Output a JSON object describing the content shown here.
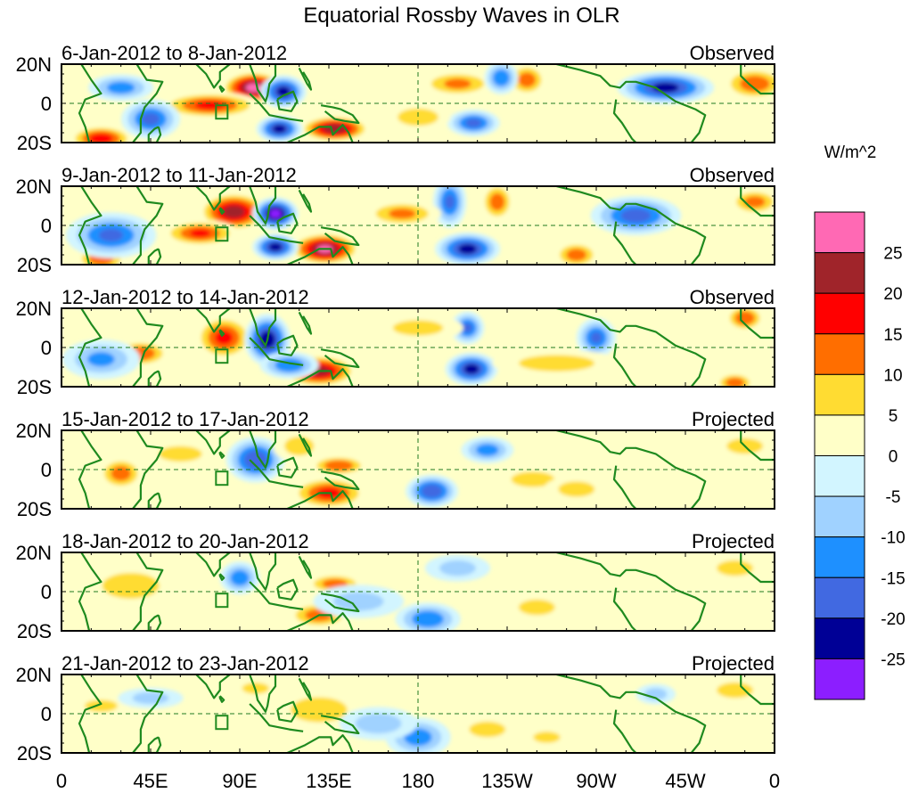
{
  "chart_data": {
    "type": "heatmap",
    "title": "Equatorial Rossby Waves in OLR",
    "units_label": "W/m^2",
    "x_axis": {
      "range_deg_east": [
        0,
        360
      ],
      "tick_labels": [
        "0",
        "45E",
        "90E",
        "135E",
        "180",
        "135W",
        "90W",
        "45W",
        "0"
      ],
      "tick_values_deg_east": [
        0,
        45,
        90,
        135,
        180,
        225,
        270,
        315,
        360
      ]
    },
    "y_axis": {
      "range_deg": [
        -20,
        20
      ],
      "tick_labels": [
        "20N",
        "0",
        "20S"
      ],
      "tick_values": [
        20,
        0,
        -20
      ]
    },
    "reference_lines": {
      "equator": 0,
      "dateline_deg_east": 180
    },
    "colorbar": {
      "levels": [
        -25,
        -20,
        -15,
        -10,
        -5,
        0,
        5,
        10,
        15,
        20,
        25
      ],
      "tick_labels": [
        "25",
        "20",
        "15",
        "10",
        "5",
        "0",
        "-5",
        "-10",
        "-15",
        "-20",
        "-25"
      ],
      "colors_high_to_low": [
        "#ff69b4",
        "#a0242a",
        "#ff0000",
        "#ff6e00",
        "#ffdc32",
        "#ffffc8",
        "#d2f5ff",
        "#a0d2ff",
        "#1e90ff",
        "#4169e1",
        "#000096",
        "#8c1eff"
      ]
    },
    "panels": [
      {
        "period": "6-Jan-2012 to 8-Jan-2012",
        "status": "Observed",
        "anomalies": [
          {
            "lon": 97,
            "lat": 8,
            "value": 27,
            "sx": 10,
            "sy": 5
          },
          {
            "lon": 75,
            "lat": -1,
            "value": 16,
            "sx": 16,
            "sy": 4
          },
          {
            "lon": 138,
            "lat": -13,
            "value": 24,
            "sx": 11,
            "sy": 4
          },
          {
            "lon": 20,
            "lat": -18,
            "value": 18,
            "sx": 10,
            "sy": 4
          },
          {
            "lon": 112,
            "lat": 6,
            "value": -22,
            "sx": 7,
            "sy": 5
          },
          {
            "lon": 110,
            "lat": -13,
            "value": -22,
            "sx": 7,
            "sy": 4
          },
          {
            "lon": 45,
            "lat": -8,
            "value": -16,
            "sx": 9,
            "sy": 6
          },
          {
            "lon": 305,
            "lat": 8,
            "value": -22,
            "sx": 15,
            "sy": 5
          },
          {
            "lon": 208,
            "lat": -10,
            "value": -16,
            "sx": 8,
            "sy": 4
          },
          {
            "lon": 235,
            "lat": 12,
            "value": 12,
            "sx": 6,
            "sy": 5
          },
          {
            "lon": 350,
            "lat": 10,
            "value": 13,
            "sx": 10,
            "sy": 5
          },
          {
            "lon": 200,
            "lat": 10,
            "value": 10,
            "sx": 12,
            "sy": 4
          },
          {
            "lon": 180,
            "lat": -7,
            "value": 8,
            "sx": 10,
            "sy": 4
          },
          {
            "lon": 222,
            "lat": 13,
            "value": -14,
            "sx": 5,
            "sy": 5
          },
          {
            "lon": 30,
            "lat": 8,
            "value": -12,
            "sx": 10,
            "sy": 4
          }
        ]
      },
      {
        "period": "9-Jan-2012 to 11-Jan-2012",
        "status": "Observed",
        "anomalies": [
          {
            "lon": 87,
            "lat": 7,
            "value": 23,
            "sx": 11,
            "sy": 6
          },
          {
            "lon": 70,
            "lat": -4,
            "value": 15,
            "sx": 12,
            "sy": 4
          },
          {
            "lon": 133,
            "lat": -12,
            "value": 26,
            "sx": 11,
            "sy": 5
          },
          {
            "lon": 108,
            "lat": 6,
            "value": -27,
            "sx": 7,
            "sy": 5
          },
          {
            "lon": 108,
            "lat": -11,
            "value": -22,
            "sx": 7,
            "sy": 4
          },
          {
            "lon": 20,
            "lat": -17,
            "value": 13,
            "sx": 8,
            "sy": 4
          },
          {
            "lon": 25,
            "lat": -5,
            "value": -15,
            "sx": 14,
            "sy": 7
          },
          {
            "lon": 205,
            "lat": -12,
            "value": -22,
            "sx": 10,
            "sy": 5
          },
          {
            "lon": 196,
            "lat": 12,
            "value": -15,
            "sx": 5,
            "sy": 8
          },
          {
            "lon": 220,
            "lat": 12,
            "value": 12,
            "sx": 5,
            "sy": 6
          },
          {
            "lon": 290,
            "lat": 5,
            "value": -17,
            "sx": 14,
            "sy": 6
          },
          {
            "lon": 172,
            "lat": 6,
            "value": 10,
            "sx": 12,
            "sy": 4
          },
          {
            "lon": 260,
            "lat": -15,
            "value": 12,
            "sx": 7,
            "sy": 4
          },
          {
            "lon": 350,
            "lat": 12,
            "value": 11,
            "sx": 8,
            "sy": 4
          }
        ]
      },
      {
        "period": "12-Jan-2012 to 14-Jan-2012",
        "status": "Observed",
        "anomalies": [
          {
            "lon": 82,
            "lat": 5,
            "value": 16,
            "sx": 9,
            "sy": 7
          },
          {
            "lon": 130,
            "lat": -12,
            "value": 22,
            "sx": 12,
            "sy": 5
          },
          {
            "lon": 104,
            "lat": 4,
            "value": -24,
            "sx": 7,
            "sy": 8
          },
          {
            "lon": 115,
            "lat": -9,
            "value": -14,
            "sx": 9,
            "sy": 4
          },
          {
            "lon": 40,
            "lat": -3,
            "value": 14,
            "sx": 9,
            "sy": 4
          },
          {
            "lon": 20,
            "lat": -6,
            "value": -10,
            "sx": 12,
            "sy": 6
          },
          {
            "lon": 207,
            "lat": -11,
            "value": -22,
            "sx": 8,
            "sy": 5
          },
          {
            "lon": 205,
            "lat": 10,
            "value": -15,
            "sx": 5,
            "sy": 5
          },
          {
            "lon": 270,
            "lat": 5,
            "value": -15,
            "sx": 6,
            "sy": 6
          },
          {
            "lon": 345,
            "lat": 15,
            "value": 14,
            "sx": 6,
            "sy": 4
          },
          {
            "lon": 340,
            "lat": -18,
            "value": 13,
            "sx": 6,
            "sy": 3
          },
          {
            "lon": 180,
            "lat": 10,
            "value": 6,
            "sx": 14,
            "sy": 4
          },
          {
            "lon": 250,
            "lat": -8,
            "value": 7,
            "sx": 20,
            "sy": 4
          }
        ]
      },
      {
        "period": "15-Jan-2012 to 17-Jan-2012",
        "status": "Projected",
        "anomalies": [
          {
            "lon": 98,
            "lat": 5,
            "value": -19,
            "sx": 9,
            "sy": 7
          },
          {
            "lon": 135,
            "lat": -12,
            "value": 16,
            "sx": 12,
            "sy": 5
          },
          {
            "lon": 140,
            "lat": 2,
            "value": 14,
            "sx": 9,
            "sy": 3
          },
          {
            "lon": 30,
            "lat": -2,
            "value": 12,
            "sx": 7,
            "sy": 5
          },
          {
            "lon": 187,
            "lat": -11,
            "value": -19,
            "sx": 8,
            "sy": 5
          },
          {
            "lon": 215,
            "lat": 10,
            "value": -12,
            "sx": 8,
            "sy": 4
          },
          {
            "lon": 238,
            "lat": -5,
            "value": 6,
            "sx": 12,
            "sy": 4
          },
          {
            "lon": 260,
            "lat": -10,
            "value": 6,
            "sx": 10,
            "sy": 4
          },
          {
            "lon": 345,
            "lat": 12,
            "value": 6,
            "sx": 10,
            "sy": 4
          },
          {
            "lon": 60,
            "lat": 8,
            "value": 6,
            "sx": 12,
            "sy": 4
          },
          {
            "lon": 120,
            "lat": 12,
            "value": 6,
            "sx": 8,
            "sy": 5
          }
        ]
      },
      {
        "period": "18-Jan-2012 to 20-Jan-2012",
        "status": "Projected",
        "anomalies": [
          {
            "lon": 138,
            "lat": 4,
            "value": 12,
            "sx": 9,
            "sy": 3
          },
          {
            "lon": 130,
            "lat": -12,
            "value": 12,
            "sx": 10,
            "sy": 4
          },
          {
            "lon": 90,
            "lat": 7,
            "value": -13,
            "sx": 6,
            "sy": 5
          },
          {
            "lon": 35,
            "lat": 3,
            "value": 6,
            "sx": 16,
            "sy": 7
          },
          {
            "lon": 185,
            "lat": -14,
            "value": -14,
            "sx": 10,
            "sy": 5
          },
          {
            "lon": 240,
            "lat": -8,
            "value": 6,
            "sx": 10,
            "sy": 4
          },
          {
            "lon": 340,
            "lat": 12,
            "value": 6,
            "sx": 10,
            "sy": 4
          },
          {
            "lon": 200,
            "lat": 12,
            "value": -6,
            "sx": 10,
            "sy": 4
          },
          {
            "lon": 150,
            "lat": -5,
            "value": -6,
            "sx": 14,
            "sy": 5
          }
        ]
      },
      {
        "period": "21-Jan-2012 to 23-Jan-2012",
        "status": "Projected",
        "anomalies": [
          {
            "lon": 130,
            "lat": 2,
            "value": 8,
            "sx": 14,
            "sy": 6
          },
          {
            "lon": 98,
            "lat": 13,
            "value": 5,
            "sx": 8,
            "sy": 3
          },
          {
            "lon": 20,
            "lat": 4,
            "value": 6,
            "sx": 9,
            "sy": 3
          },
          {
            "lon": 180,
            "lat": -12,
            "value": -12,
            "sx": 10,
            "sy": 6
          },
          {
            "lon": 215,
            "lat": -8,
            "value": 6,
            "sx": 10,
            "sy": 4
          },
          {
            "lon": 245,
            "lat": -12,
            "value": 5,
            "sx": 8,
            "sy": 3
          },
          {
            "lon": 340,
            "lat": 12,
            "value": 6,
            "sx": 10,
            "sy": 4
          },
          {
            "lon": 45,
            "lat": 8,
            "value": -6,
            "sx": 10,
            "sy": 3
          },
          {
            "lon": 160,
            "lat": -5,
            "value": -7,
            "sx": 12,
            "sy": 5
          },
          {
            "lon": 300,
            "lat": 10,
            "value": -6,
            "sx": 6,
            "sy": 3
          }
        ]
      }
    ]
  }
}
